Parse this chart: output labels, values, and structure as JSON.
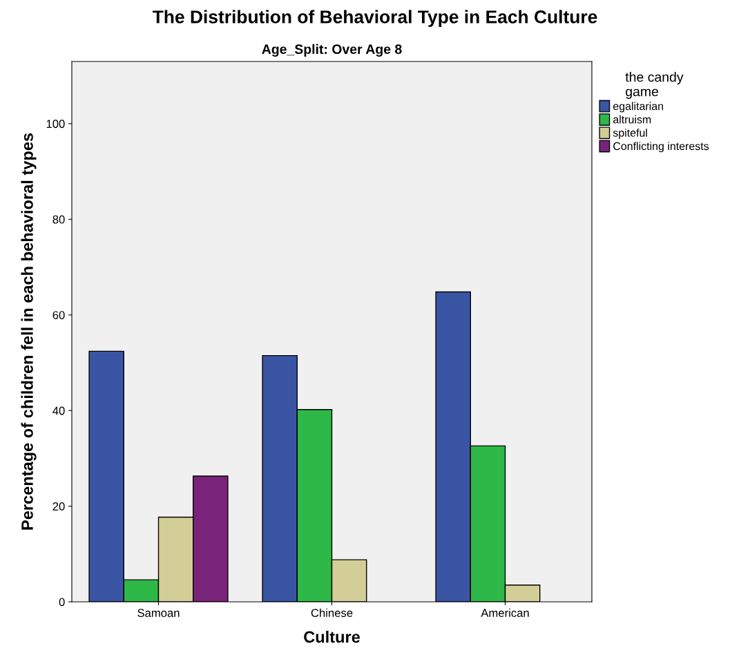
{
  "chart_data": {
    "type": "bar",
    "title": "The Distribution of Behavioral Type in Each Culture",
    "subtitle": "Age_Split: Over Age 8",
    "xlabel": "Culture",
    "ylabel": "Percentage of children fell in each behavioral types",
    "legend_title": "the candy\ngame",
    "legend": "top right",
    "categories": [
      "Samoan",
      "Chinese",
      "American"
    ],
    "series": [
      {
        "name": "egalitarian",
        "color": "#3a55a4",
        "values": [
          52.4,
          51.5,
          64.8
        ]
      },
      {
        "name": "altruism",
        "color": "#2eb848",
        "values": [
          4.6,
          40.2,
          32.6
        ]
      },
      {
        "name": "spiteful",
        "color": "#d3ce97",
        "values": [
          17.7,
          8.8,
          3.5
        ]
      },
      {
        "name": "Conflicting interests",
        "color": "#79237a",
        "values": [
          26.3,
          null,
          null
        ]
      }
    ],
    "ylim": [
      0,
      113
    ],
    "yticks": [
      0,
      20,
      40,
      60,
      80,
      100
    ],
    "grid": false
  }
}
